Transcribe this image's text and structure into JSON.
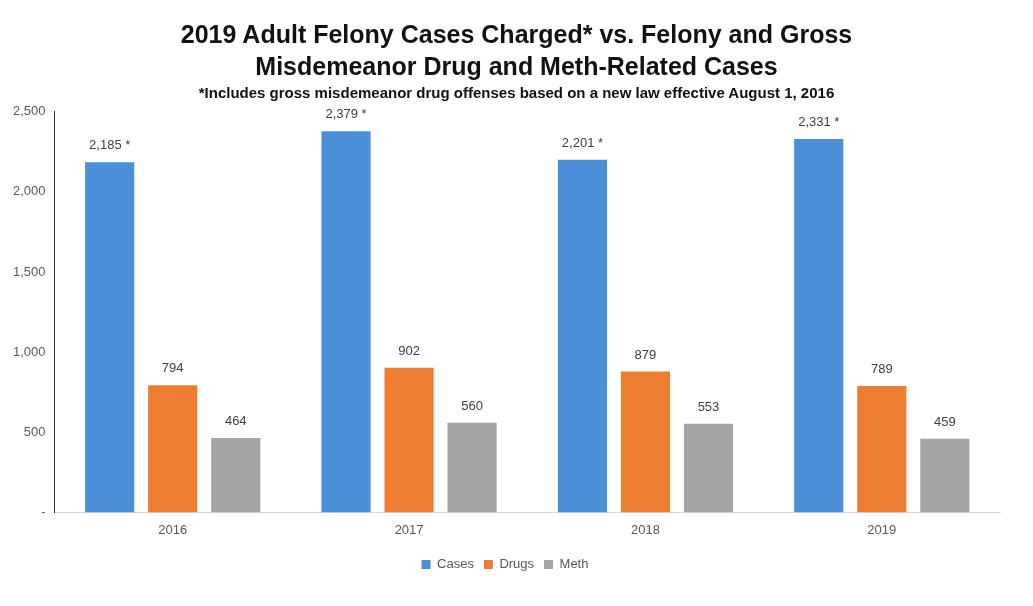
{
  "chart_data": {
    "type": "bar",
    "title": "2019 Adult Felony Cases Charged* vs. Felony and Gross Misdemeanor Drug and Meth-Related Cases",
    "subtitle": "*Includes gross misdemeanor drug offenses based on a new law effective August 1, 2016",
    "categories": [
      "2016",
      "2017",
      "2018",
      "2019"
    ],
    "series": [
      {
        "name": "Cases",
        "color": "#4a8fd8",
        "values": [
          2185,
          2379,
          2201,
          2331
        ],
        "value_labels": [
          "2,185 *",
          "2,379 *",
          "2,201 *",
          "2,331 *"
        ]
      },
      {
        "name": "Drugs",
        "color": "#ed7d31",
        "values": [
          794,
          902,
          879,
          789
        ],
        "value_labels": [
          "794",
          "902",
          "879",
          "789"
        ]
      },
      {
        "name": "Meth",
        "color": "#a5a5a5",
        "values": [
          464,
          560,
          553,
          459
        ],
        "value_labels": [
          "464",
          "560",
          "553",
          "459"
        ]
      }
    ],
    "ylim": [
      0,
      2500
    ],
    "yticks": [
      {
        "value": 0,
        "label": "-"
      },
      {
        "value": 500,
        "label": "500"
      },
      {
        "value": 1000,
        "label": "1,000"
      },
      {
        "value": 1500,
        "label": "1,500"
      },
      {
        "value": 2000,
        "label": "2,000"
      },
      {
        "value": 2500,
        "label": "2,500"
      }
    ],
    "grid": false,
    "legend": "bottom"
  }
}
